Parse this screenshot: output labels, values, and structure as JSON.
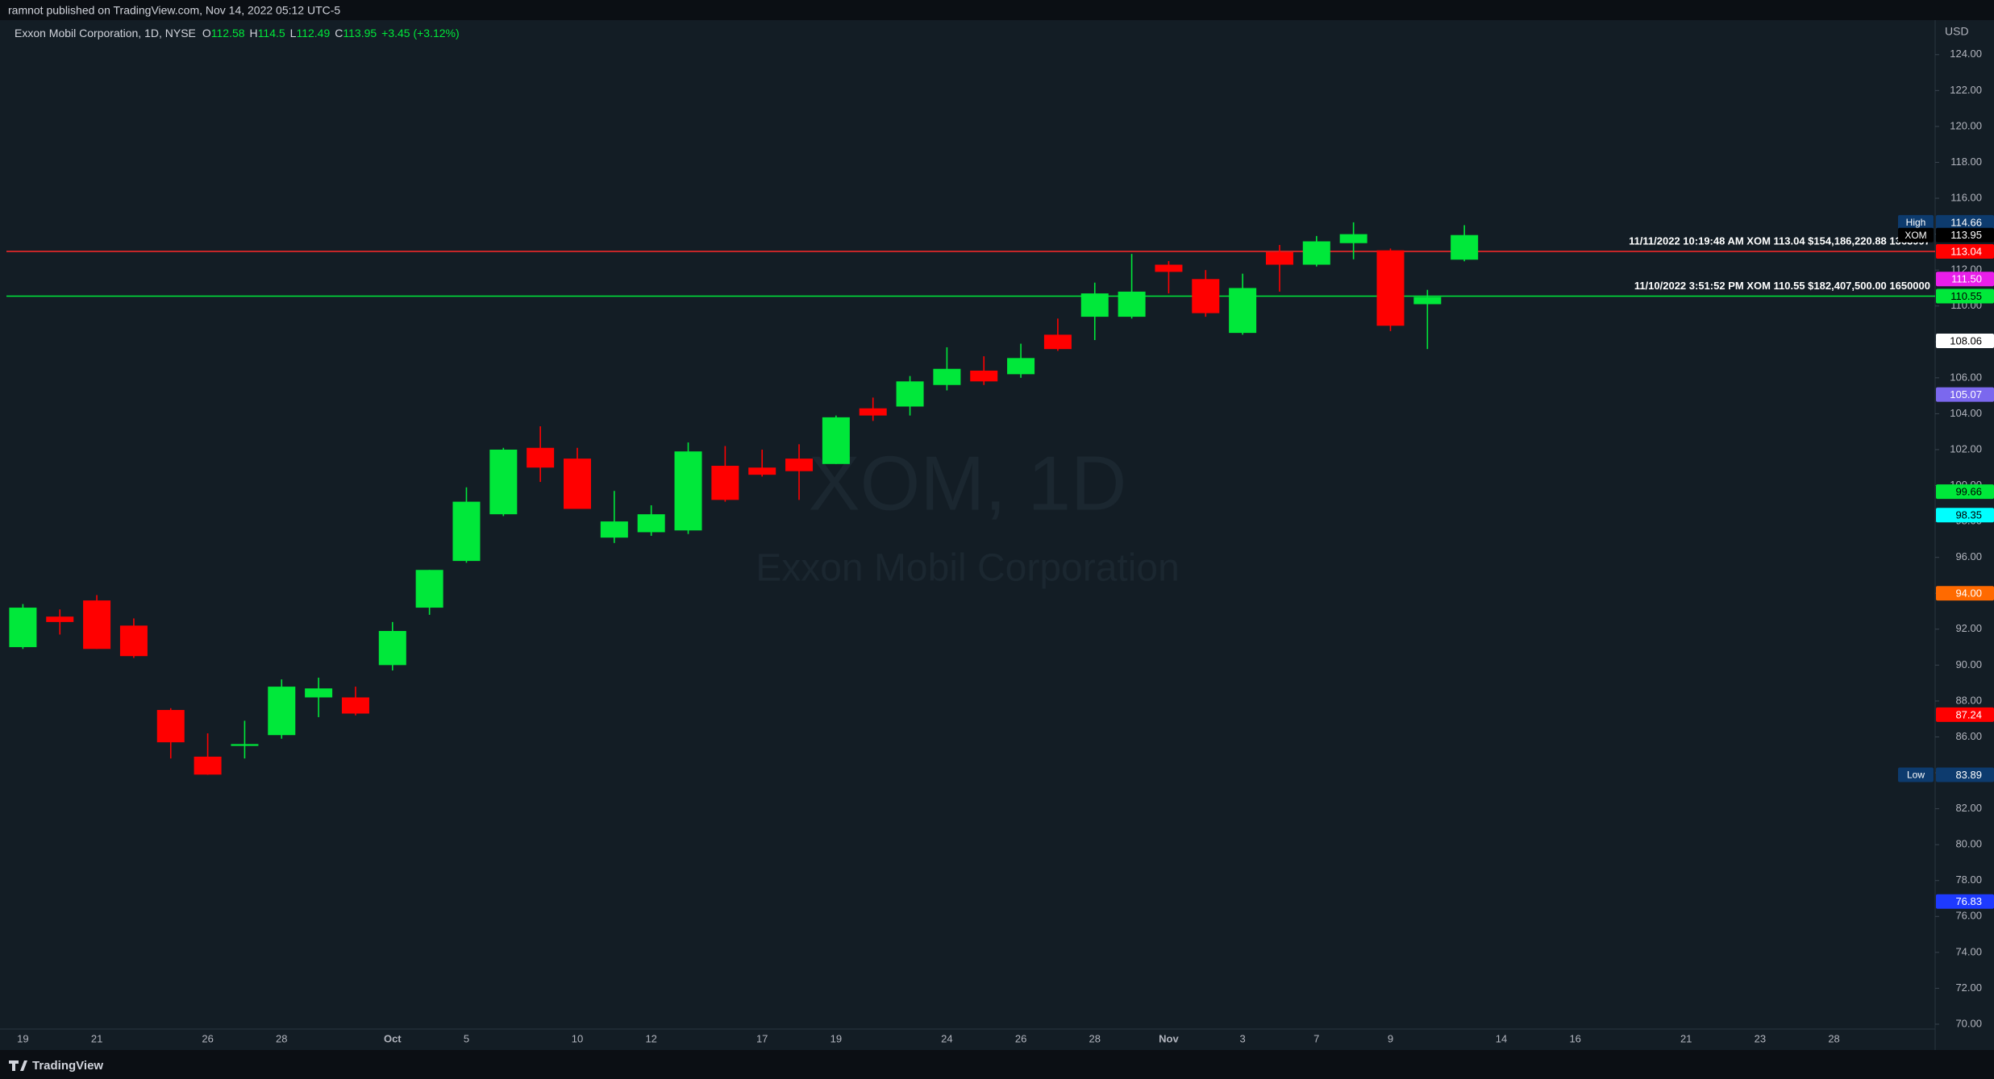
{
  "header": {
    "published": "ramnot published on TradingView.com, Nov 14, 2022 05:12 UTC-5"
  },
  "footer": {
    "brand": "TradingView"
  },
  "chart_data": {
    "type": "candlestick",
    "symbol_line": "Exxon Mobil Corporation, 1D, NYSE",
    "legend": [
      {
        "key": "O",
        "value": 112.58
      },
      {
        "key": "H",
        "value": 114.5
      },
      {
        "key": "L",
        "value": 112.49
      },
      {
        "key": "C",
        "value": 113.95
      }
    ],
    "change": "+3.45 (+3.12%)",
    "watermark": "XOM, 1D",
    "watermark_subtitle": "Exxon Mobil Corporation",
    "currency": "USD",
    "up_color": "#00e83a",
    "down_color": "#ff0000",
    "categories": [
      "19",
      null,
      "21",
      null,
      null,
      "26",
      null,
      "28",
      null,
      null,
      "Oct",
      null,
      "5",
      null,
      null,
      "10",
      null,
      "12",
      null,
      null,
      "17",
      null,
      "19",
      null,
      null,
      "24",
      null,
      "26",
      null,
      "28",
      null,
      "Nov",
      null,
      "3",
      null,
      "7",
      null,
      "9",
      null,
      null,
      "14",
      null,
      "16",
      null,
      null,
      "21",
      null,
      "23",
      null,
      "28",
      null,
      null
    ],
    "open": [
      91.0,
      92.7,
      93.6,
      92.2,
      87.5,
      84.9,
      85.5,
      86.1,
      88.2,
      88.2,
      90.0,
      93.2,
      95.8,
      98.4,
      102.1,
      101.5,
      97.1,
      97.4,
      97.5,
      101.1,
      101.0,
      101.5,
      101.2,
      104.3,
      104.4,
      105.6,
      106.4,
      106.2,
      108.4,
      109.4,
      109.4,
      112.3,
      111.5,
      108.5,
      113.0,
      112.3,
      113.5,
      113.1,
      110.1,
      112.58,
      null,
      null,
      null,
      null,
      null,
      null,
      null,
      null,
      null,
      null,
      null,
      null
    ],
    "high": [
      93.4,
      93.1,
      93.9,
      92.6,
      87.6,
      86.2,
      86.9,
      89.2,
      89.3,
      88.8,
      92.4,
      95.3,
      99.9,
      102.1,
      103.3,
      102.1,
      99.7,
      98.9,
      102.4,
      102.2,
      102.0,
      102.3,
      103.9,
      104.9,
      106.1,
      107.7,
      107.2,
      107.9,
      109.3,
      111.3,
      112.9,
      112.5,
      112.0,
      111.8,
      113.4,
      113.9,
      114.66,
      113.2,
      110.9,
      114.5,
      null,
      null,
      null,
      null,
      null,
      null,
      null,
      null,
      null,
      null,
      null,
      null
    ],
    "low": [
      90.9,
      91.7,
      90.9,
      90.4,
      84.8,
      83.89,
      84.8,
      85.9,
      87.1,
      87.2,
      89.7,
      92.8,
      95.7,
      98.3,
      100.2,
      98.7,
      96.8,
      97.2,
      97.3,
      99.1,
      100.5,
      99.2,
      101.2,
      103.6,
      103.9,
      105.3,
      105.6,
      106.0,
      107.5,
      108.1,
      109.3,
      110.7,
      109.4,
      108.4,
      110.8,
      112.2,
      112.6,
      108.6,
      107.6,
      112.49,
      null,
      null,
      null,
      null,
      null,
      null,
      null,
      null,
      null,
      null,
      null,
      null
    ],
    "close": [
      93.2,
      92.4,
      90.9,
      90.5,
      85.7,
      83.9,
      85.6,
      88.8,
      88.7,
      87.3,
      91.9,
      95.3,
      99.1,
      102.0,
      101.0,
      98.7,
      98.0,
      98.4,
      101.9,
      99.2,
      100.6,
      100.8,
      103.8,
      103.9,
      105.8,
      106.5,
      105.8,
      107.1,
      107.6,
      110.7,
      110.8,
      111.9,
      109.6,
      111.0,
      112.3,
      113.6,
      114.0,
      108.9,
      110.5,
      113.95,
      null,
      null,
      null,
      null,
      null,
      null,
      null,
      null,
      null,
      null,
      null,
      null
    ],
    "ylim": [
      69.73,
      125.92
    ],
    "yticks": [
      {
        "value": 70,
        "label": "70.00"
      },
      {
        "value": 72,
        "label": "72.00"
      },
      {
        "value": 74,
        "label": "74.00"
      },
      {
        "value": 76,
        "label": "76.00"
      },
      {
        "value": 78,
        "label": "78.00"
      },
      {
        "value": 80,
        "label": "80.00"
      },
      {
        "value": 82,
        "label": "82.00"
      },
      {
        "value": 84,
        "label": "84.00"
      },
      {
        "value": 86,
        "label": "86.00"
      },
      {
        "value": 88,
        "label": "88.00"
      },
      {
        "value": 90,
        "label": "90.00"
      },
      {
        "value": 92,
        "label": "92.00"
      },
      {
        "value": 94,
        "label": "94.00"
      },
      {
        "value": 96,
        "label": "96.00"
      },
      {
        "value": 98,
        "label": "98.00"
      },
      {
        "value": 100,
        "label": "100.00"
      },
      {
        "value": 102,
        "label": "102.00"
      },
      {
        "value": 104,
        "label": "104.00"
      },
      {
        "value": 106,
        "label": "106.00"
      },
      {
        "value": 108,
        "label": "108.00"
      },
      {
        "value": 110,
        "label": "110.00"
      },
      {
        "value": 112,
        "label": "112.00"
      },
      {
        "value": 114,
        "label": "114.00"
      },
      {
        "value": 116,
        "label": "116.00"
      },
      {
        "value": 118,
        "label": "118.00"
      },
      {
        "value": 120,
        "label": "120.00"
      },
      {
        "value": 122,
        "label": "122.00"
      },
      {
        "value": 124,
        "label": "124.00"
      }
    ],
    "hlines": [
      {
        "value": 113.04,
        "color": "#ff2a2a",
        "text": "11/11/2022 10:19:48 AM XOM 113.04 $154,186,220.88 1363997"
      },
      {
        "value": 110.55,
        "color": "#00e83a",
        "text": "11/10/2022 3:51:52 PM XOM 110.55 $182,407,500.00 1650000"
      }
    ],
    "price_labels": [
      {
        "value": 114.66,
        "label": "114.66",
        "tag": "High",
        "bg": "#0d3b6e",
        "fg": "#ffffff"
      },
      {
        "value": 113.95,
        "label": "113.95",
        "tag": "XOM",
        "bg": "#000000",
        "fg": "#ffffff"
      },
      {
        "value": 113.04,
        "label": "113.04",
        "bg": "#ff0000",
        "fg": "#ffffff"
      },
      {
        "value": 111.5,
        "label": "111.50",
        "bg": "#e91ee9",
        "fg": "#ffffff"
      },
      {
        "value": 110.55,
        "label": "110.55",
        "bg": "#00e83a",
        "fg": "#000000"
      },
      {
        "value": 108.06,
        "label": "108.06",
        "bg": "#ffffff",
        "fg": "#000000"
      },
      {
        "value": 105.07,
        "label": "105.07",
        "bg": "#7b68ee",
        "fg": "#ffffff"
      },
      {
        "value": 99.66,
        "label": "99.66",
        "bg": "#00e83a",
        "fg": "#000000"
      },
      {
        "value": 98.35,
        "label": "98.35",
        "bg": "#00ffff",
        "fg": "#000000"
      },
      {
        "value": 94.0,
        "label": "94.00",
        "bg": "#ff6a00",
        "fg": "#ffffff"
      },
      {
        "value": 87.24,
        "label": "87.24",
        "bg": "#ff0000",
        "fg": "#ffffff"
      },
      {
        "value": 83.89,
        "label": "83.89",
        "tag": "Low",
        "bg": "#0d3b6e",
        "fg": "#ffffff"
      },
      {
        "value": 76.83,
        "label": "76.83",
        "bg": "#1e3aff",
        "fg": "#ffffff"
      }
    ]
  }
}
